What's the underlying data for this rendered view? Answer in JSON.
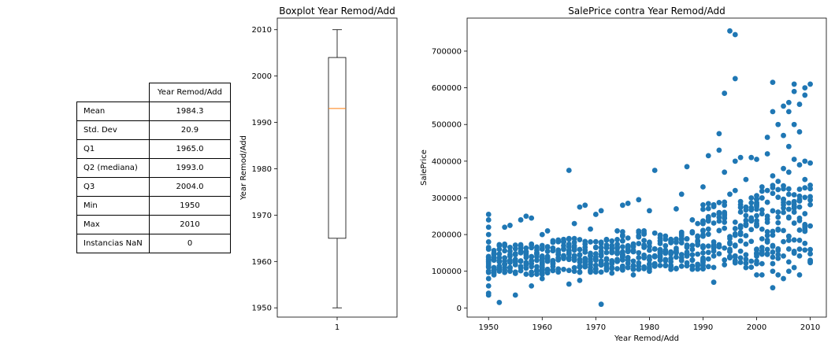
{
  "stats_table": {
    "header": "Year Remod/Add",
    "rows": [
      {
        "label": "Mean",
        "value": "1984.3"
      },
      {
        "label": "Std. Dev",
        "value": "20.9"
      },
      {
        "label": "Q1",
        "value": "1965.0"
      },
      {
        "label": "Q2 (mediana)",
        "value": "1993.0"
      },
      {
        "label": "Q3",
        "value": "2004.0"
      },
      {
        "label": "Min",
        "value": "1950"
      },
      {
        "label": "Max",
        "value": "2010"
      },
      {
        "label": "Instancias NaN",
        "value": "0"
      }
    ]
  },
  "chart_data": [
    {
      "type": "box",
      "title": "Boxplot Year Remod/Add",
      "xlabel": "",
      "ylabel": "Year Remod/Add",
      "categories": [
        "1"
      ],
      "ylim": [
        1948,
        2012.5
      ],
      "yticks": [
        1950,
        1960,
        1970,
        1980,
        1990,
        2000,
        2010
      ],
      "box": {
        "whisker_low": 1950,
        "q1": 1965,
        "median": 1993,
        "q3": 2004,
        "whisker_high": 2010
      },
      "colors": {
        "median": "#ff7f0e",
        "box": "#000000"
      }
    },
    {
      "type": "scatter",
      "title": "SalePrice contra Year Remod/Add",
      "xlabel": "Year Remod/Add",
      "ylabel": "SalePrice",
      "xlim": [
        1946,
        2013
      ],
      "ylim": [
        -25000,
        790000
      ],
      "xticks": [
        1950,
        1960,
        1970,
        1980,
        1990,
        2000,
        2010
      ],
      "yticks": [
        0,
        100000,
        200000,
        300000,
        400000,
        500000,
        600000,
        700000
      ],
      "color": "#1f77b4",
      "points": [
        [
          1950,
          35000
        ],
        [
          1950,
          40000
        ],
        [
          1950,
          60000
        ],
        [
          1950,
          80000
        ],
        [
          1950,
          100000
        ],
        [
          1950,
          120000
        ],
        [
          1950,
          140000
        ],
        [
          1950,
          160000
        ],
        [
          1950,
          180000
        ],
        [
          1950,
          200000
        ],
        [
          1950,
          220000
        ],
        [
          1950,
          240000
        ],
        [
          1950,
          255000
        ],
        [
          1951,
          90000
        ],
        [
          1951,
          130000
        ],
        [
          1951,
          150000
        ],
        [
          1952,
          15000
        ],
        [
          1952,
          110000
        ],
        [
          1952,
          160000
        ],
        [
          1953,
          120000
        ],
        [
          1953,
          220000
        ],
        [
          1954,
          100000
        ],
        [
          1954,
          225000
        ],
        [
          1955,
          35000
        ],
        [
          1955,
          130000
        ],
        [
          1956,
          150000
        ],
        [
          1956,
          240000
        ],
        [
          1957,
          250000
        ],
        [
          1957,
          120000
        ],
        [
          1958,
          60000
        ],
        [
          1958,
          245000
        ],
        [
          1959,
          140000
        ],
        [
          1959,
          100000
        ],
        [
          1960,
          80000
        ],
        [
          1960,
          200000
        ],
        [
          1961,
          210000
        ],
        [
          1962,
          120000
        ],
        [
          1963,
          185000
        ],
        [
          1964,
          105000
        ],
        [
          1965,
          375000
        ],
        [
          1965,
          65000
        ],
        [
          1965,
          150000
        ],
        [
          1966,
          230000
        ],
        [
          1967,
          275000
        ],
        [
          1967,
          75000
        ],
        [
          1968,
          280000
        ],
        [
          1968,
          130000
        ],
        [
          1969,
          215000
        ],
        [
          1970,
          255000
        ],
        [
          1970,
          130000
        ],
        [
          1971,
          10000
        ],
        [
          1971,
          265000
        ],
        [
          1972,
          120000
        ],
        [
          1973,
          95000
        ],
        [
          1974,
          210000
        ],
        [
          1975,
          280000
        ],
        [
          1976,
          285000
        ],
        [
          1976,
          110000
        ],
        [
          1977,
          90000
        ],
        [
          1978,
          295000
        ],
        [
          1979,
          210000
        ],
        [
          1980,
          265000
        ],
        [
          1980,
          100000
        ],
        [
          1981,
          375000
        ],
        [
          1982,
          130000
        ],
        [
          1983,
          115000
        ],
        [
          1984,
          150000
        ],
        [
          1985,
          270000
        ],
        [
          1986,
          310000
        ],
        [
          1987,
          385000
        ],
        [
          1988,
          240000
        ],
        [
          1989,
          230000
        ],
        [
          1990,
          330000
        ],
        [
          1990,
          150000
        ],
        [
          1991,
          415000
        ],
        [
          1992,
          280000
        ],
        [
          1992,
          70000
        ],
        [
          1993,
          475000
        ],
        [
          1993,
          430000
        ],
        [
          1994,
          585000
        ],
        [
          1994,
          370000
        ],
        [
          1995,
          755000
        ],
        [
          1996,
          745000
        ],
        [
          1996,
          625000
        ],
        [
          1996,
          400000
        ],
        [
          1997,
          410000
        ],
        [
          1998,
          350000
        ],
        [
          1998,
          110000
        ],
        [
          1999,
          410000
        ],
        [
          2000,
          405000
        ],
        [
          2000,
          90000
        ],
        [
          2001,
          330000
        ],
        [
          2002,
          465000
        ],
        [
          2002,
          420000
        ],
        [
          2003,
          615000
        ],
        [
          2003,
          535000
        ],
        [
          2003,
          55000
        ],
        [
          2004,
          500000
        ],
        [
          2004,
          90000
        ],
        [
          2005,
          550000
        ],
        [
          2005,
          470000
        ],
        [
          2006,
          560000
        ],
        [
          2006,
          535000
        ],
        [
          2006,
          440000
        ],
        [
          2007,
          610000
        ],
        [
          2007,
          590000
        ],
        [
          2007,
          500000
        ],
        [
          2008,
          555000
        ],
        [
          2008,
          480000
        ],
        [
          2009,
          600000
        ],
        [
          2009,
          580000
        ],
        [
          2009,
          400000
        ],
        [
          2010,
          610000
        ],
        [
          2010,
          395000
        ],
        [
          2010,
          130000
        ],
        [
          2005,
          380000
        ],
        [
          2006,
          370000
        ],
        [
          2007,
          405000
        ],
        [
          2008,
          390000
        ],
        [
          2009,
          350000
        ],
        [
          2004,
          345000
        ],
        [
          2003,
          360000
        ],
        [
          2002,
          320000
        ],
        [
          2001,
          300000
        ],
        [
          2000,
          280000
        ],
        [
          1999,
          300000
        ],
        [
          1998,
          275000
        ],
        [
          1997,
          290000
        ],
        [
          1996,
          320000
        ],
        [
          1995,
          310000
        ],
        [
          1994,
          280000
        ],
        [
          1993,
          260000
        ],
        [
          1991,
          240000
        ],
        [
          2005,
          80000
        ],
        [
          2006,
          100000
        ],
        [
          2007,
          110000
        ],
        [
          2008,
          90000
        ],
        [
          2003,
          100000
        ],
        [
          2001,
          90000
        ]
      ],
      "dense_bands": [
        {
          "x0": 1950,
          "x1": 1960,
          "lo": 90000,
          "hi": 175000
        },
        {
          "x0": 1960,
          "x1": 1975,
          "lo": 95000,
          "hi": 190000
        },
        {
          "x0": 1975,
          "x1": 1990,
          "lo": 105000,
          "hi": 210000
        },
        {
          "x0": 1990,
          "x1": 2000,
          "lo": 110000,
          "hi": 290000
        },
        {
          "x0": 2000,
          "x1": 2010,
          "lo": 120000,
          "hi": 340000
        }
      ]
    }
  ]
}
